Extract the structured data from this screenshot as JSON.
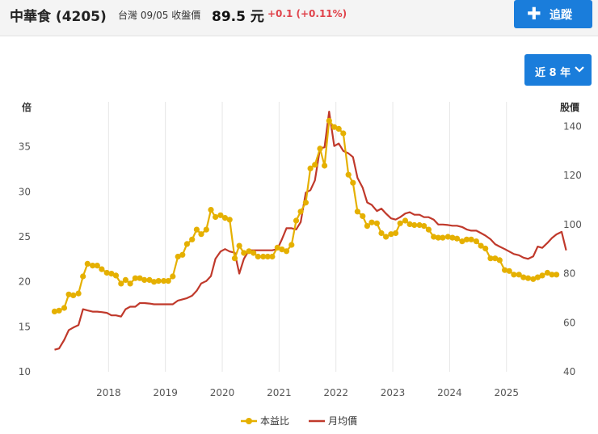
{
  "header": {
    "stock_name": "中華食 (4205)",
    "market_date_label": "台灣 09/05 收盤價",
    "price": "89.5 元",
    "change": "+0.1 (+0.11%)",
    "track_button": "追蹤",
    "track_icon": "plus-icon"
  },
  "range_selector": {
    "label": "近 8 年",
    "icon": "chevron-down-icon"
  },
  "colors": {
    "pe": "#e5b000",
    "price": "#c0392b",
    "button": "#1a7ddb",
    "change": "#e0434b"
  },
  "chart_data": {
    "type": "line",
    "left_axis": {
      "title": "倍",
      "ticks": [
        10,
        15,
        20,
        25,
        30,
        35
      ],
      "range": [
        10,
        40
      ]
    },
    "right_axis": {
      "title": "股價",
      "ticks": [
        40,
        60,
        80,
        100,
        120,
        140
      ],
      "range": [
        40,
        150
      ]
    },
    "x_axis": {
      "ticks": [
        "2018",
        "2019",
        "2020",
        "2021",
        "2022",
        "2023",
        "2024",
        "2025"
      ],
      "range": [
        2017.0,
        2025.8
      ],
      "grid": true
    },
    "legend_position": "bottom-center",
    "series": [
      {
        "name": "本益比",
        "axis": "left",
        "marker": "circle",
        "points": [
          [
            2017.05,
            16.7
          ],
          [
            2017.13,
            16.8
          ],
          [
            2017.22,
            17.1
          ],
          [
            2017.3,
            18.6
          ],
          [
            2017.38,
            18.5
          ],
          [
            2017.47,
            18.7
          ],
          [
            2017.55,
            20.6
          ],
          [
            2017.63,
            22.0
          ],
          [
            2017.72,
            21.8
          ],
          [
            2017.8,
            21.8
          ],
          [
            2017.88,
            21.4
          ],
          [
            2017.97,
            21.0
          ],
          [
            2018.05,
            20.9
          ],
          [
            2018.13,
            20.7
          ],
          [
            2018.22,
            19.8
          ],
          [
            2018.3,
            20.2
          ],
          [
            2018.38,
            19.8
          ],
          [
            2018.47,
            20.4
          ],
          [
            2018.55,
            20.4
          ],
          [
            2018.63,
            20.2
          ],
          [
            2018.72,
            20.2
          ],
          [
            2018.8,
            20.0
          ],
          [
            2018.88,
            20.1
          ],
          [
            2018.97,
            20.1
          ],
          [
            2019.05,
            20.1
          ],
          [
            2019.13,
            20.6
          ],
          [
            2019.22,
            22.8
          ],
          [
            2019.3,
            23.0
          ],
          [
            2019.38,
            24.2
          ],
          [
            2019.47,
            24.7
          ],
          [
            2019.55,
            25.8
          ],
          [
            2019.63,
            25.3
          ],
          [
            2019.72,
            25.8
          ],
          [
            2019.8,
            28.0
          ],
          [
            2019.88,
            27.2
          ],
          [
            2019.97,
            27.4
          ],
          [
            2020.05,
            27.1
          ],
          [
            2020.13,
            26.9
          ],
          [
            2020.22,
            22.6
          ],
          [
            2020.3,
            24.0
          ],
          [
            2020.38,
            23.2
          ],
          [
            2020.47,
            23.4
          ],
          [
            2020.55,
            23.2
          ],
          [
            2020.63,
            22.8
          ],
          [
            2020.72,
            22.8
          ],
          [
            2020.8,
            22.8
          ],
          [
            2020.88,
            22.8
          ],
          [
            2020.97,
            23.8
          ],
          [
            2021.05,
            23.6
          ],
          [
            2021.13,
            23.4
          ],
          [
            2021.22,
            24.1
          ],
          [
            2021.3,
            26.8
          ],
          [
            2021.38,
            27.8
          ],
          [
            2021.47,
            28.8
          ],
          [
            2021.55,
            32.6
          ],
          [
            2021.63,
            33.0
          ],
          [
            2021.72,
            34.8
          ],
          [
            2021.8,
            32.9
          ],
          [
            2021.88,
            37.9
          ],
          [
            2021.97,
            37.2
          ],
          [
            2022.05,
            37.0
          ],
          [
            2022.13,
            36.5
          ],
          [
            2022.22,
            31.9
          ],
          [
            2022.3,
            31.0
          ],
          [
            2022.38,
            27.8
          ],
          [
            2022.47,
            27.3
          ],
          [
            2022.55,
            26.2
          ],
          [
            2022.63,
            26.6
          ],
          [
            2022.72,
            26.5
          ],
          [
            2022.8,
            25.4
          ],
          [
            2022.88,
            25.0
          ],
          [
            2022.97,
            25.3
          ],
          [
            2023.05,
            25.4
          ],
          [
            2023.13,
            26.5
          ],
          [
            2023.22,
            26.8
          ],
          [
            2023.3,
            26.4
          ],
          [
            2023.38,
            26.3
          ],
          [
            2023.47,
            26.3
          ],
          [
            2023.55,
            26.2
          ],
          [
            2023.63,
            25.8
          ],
          [
            2023.72,
            25.0
          ],
          [
            2023.8,
            24.9
          ],
          [
            2023.88,
            24.9
          ],
          [
            2023.97,
            25.0
          ],
          [
            2024.05,
            24.9
          ],
          [
            2024.13,
            24.8
          ],
          [
            2024.22,
            24.5
          ],
          [
            2024.3,
            24.7
          ],
          [
            2024.38,
            24.7
          ],
          [
            2024.47,
            24.5
          ],
          [
            2024.55,
            24.0
          ],
          [
            2024.63,
            23.7
          ],
          [
            2024.72,
            22.6
          ],
          [
            2024.8,
            22.6
          ],
          [
            2024.88,
            22.4
          ],
          [
            2024.97,
            21.3
          ],
          [
            2025.05,
            21.2
          ],
          [
            2025.13,
            20.8
          ],
          [
            2025.22,
            20.8
          ],
          [
            2025.3,
            20.5
          ],
          [
            2025.38,
            20.4
          ],
          [
            2025.47,
            20.3
          ],
          [
            2025.55,
            20.5
          ],
          [
            2025.63,
            20.7
          ],
          [
            2025.72,
            21.0
          ],
          [
            2025.8,
            20.8
          ],
          [
            2025.88,
            20.8
          ]
        ]
      },
      {
        "name": "月均價",
        "axis": "right",
        "marker": "none",
        "points": [
          [
            2017.05,
            49
          ],
          [
            2017.13,
            49.5
          ],
          [
            2017.22,
            53
          ],
          [
            2017.3,
            57
          ],
          [
            2017.38,
            58
          ],
          [
            2017.47,
            59
          ],
          [
            2017.55,
            65.5
          ],
          [
            2017.63,
            65
          ],
          [
            2017.72,
            64.5
          ],
          [
            2017.8,
            64.5
          ],
          [
            2017.88,
            64.3
          ],
          [
            2017.97,
            64
          ],
          [
            2018.05,
            63
          ],
          [
            2018.13,
            63
          ],
          [
            2018.22,
            62.5
          ],
          [
            2018.3,
            65.5
          ],
          [
            2018.38,
            66.5
          ],
          [
            2018.47,
            66.5
          ],
          [
            2018.55,
            68
          ],
          [
            2018.63,
            68
          ],
          [
            2018.72,
            67.8
          ],
          [
            2018.8,
            67.5
          ],
          [
            2018.88,
            67.5
          ],
          [
            2018.97,
            67.5
          ],
          [
            2019.05,
            67.5
          ],
          [
            2019.13,
            67.5
          ],
          [
            2019.22,
            69
          ],
          [
            2019.3,
            69.5
          ],
          [
            2019.38,
            70
          ],
          [
            2019.47,
            71
          ],
          [
            2019.55,
            73
          ],
          [
            2019.63,
            76
          ],
          [
            2019.72,
            77
          ],
          [
            2019.8,
            79
          ],
          [
            2019.88,
            86
          ],
          [
            2019.97,
            89
          ],
          [
            2020.05,
            90
          ],
          [
            2020.13,
            89
          ],
          [
            2020.22,
            88.5
          ],
          [
            2020.3,
            80
          ],
          [
            2020.38,
            86
          ],
          [
            2020.47,
            89.5
          ],
          [
            2020.55,
            89.5
          ],
          [
            2020.63,
            89.5
          ],
          [
            2020.72,
            89.5
          ],
          [
            2020.8,
            89.5
          ],
          [
            2020.88,
            89.5
          ],
          [
            2020.97,
            90
          ],
          [
            2021.05,
            94
          ],
          [
            2021.13,
            98.5
          ],
          [
            2021.22,
            98.5
          ],
          [
            2021.3,
            98
          ],
          [
            2021.38,
            101
          ],
          [
            2021.47,
            113
          ],
          [
            2021.55,
            114
          ],
          [
            2021.63,
            118
          ],
          [
            2021.72,
            131
          ],
          [
            2021.8,
            131.5
          ],
          [
            2021.88,
            146
          ],
          [
            2021.97,
            132
          ],
          [
            2022.05,
            133
          ],
          [
            2022.13,
            130
          ],
          [
            2022.22,
            129
          ],
          [
            2022.3,
            127.5
          ],
          [
            2022.38,
            119
          ],
          [
            2022.47,
            115
          ],
          [
            2022.55,
            109
          ],
          [
            2022.63,
            108
          ],
          [
            2022.72,
            105.5
          ],
          [
            2022.8,
            106.5
          ],
          [
            2022.88,
            104.5
          ],
          [
            2022.97,
            102.5
          ],
          [
            2023.05,
            102
          ],
          [
            2023.13,
            103
          ],
          [
            2023.22,
            104.5
          ],
          [
            2023.3,
            105
          ],
          [
            2023.38,
            104
          ],
          [
            2023.47,
            104
          ],
          [
            2023.55,
            103
          ],
          [
            2023.63,
            103
          ],
          [
            2023.72,
            102
          ],
          [
            2023.8,
            100
          ],
          [
            2023.88,
            100
          ],
          [
            2023.97,
            99.8
          ],
          [
            2024.05,
            99.5
          ],
          [
            2024.13,
            99.5
          ],
          [
            2024.22,
            99
          ],
          [
            2024.3,
            98
          ],
          [
            2024.38,
            97.5
          ],
          [
            2024.47,
            97.5
          ],
          [
            2024.55,
            96.5
          ],
          [
            2024.63,
            95.5
          ],
          [
            2024.72,
            94
          ],
          [
            2024.8,
            92
          ],
          [
            2024.88,
            91
          ],
          [
            2024.97,
            90
          ],
          [
            2025.05,
            89
          ],
          [
            2025.13,
            88
          ],
          [
            2025.22,
            87.5
          ],
          [
            2025.3,
            86.5
          ],
          [
            2025.38,
            86
          ],
          [
            2025.47,
            87
          ],
          [
            2025.55,
            91
          ],
          [
            2025.63,
            90.5
          ],
          [
            2025.72,
            92.5
          ],
          [
            2025.8,
            94.5
          ],
          [
            2025.88,
            96
          ],
          [
            2025.97,
            97
          ],
          [
            2026.05,
            89.5
          ]
        ]
      }
    ]
  }
}
